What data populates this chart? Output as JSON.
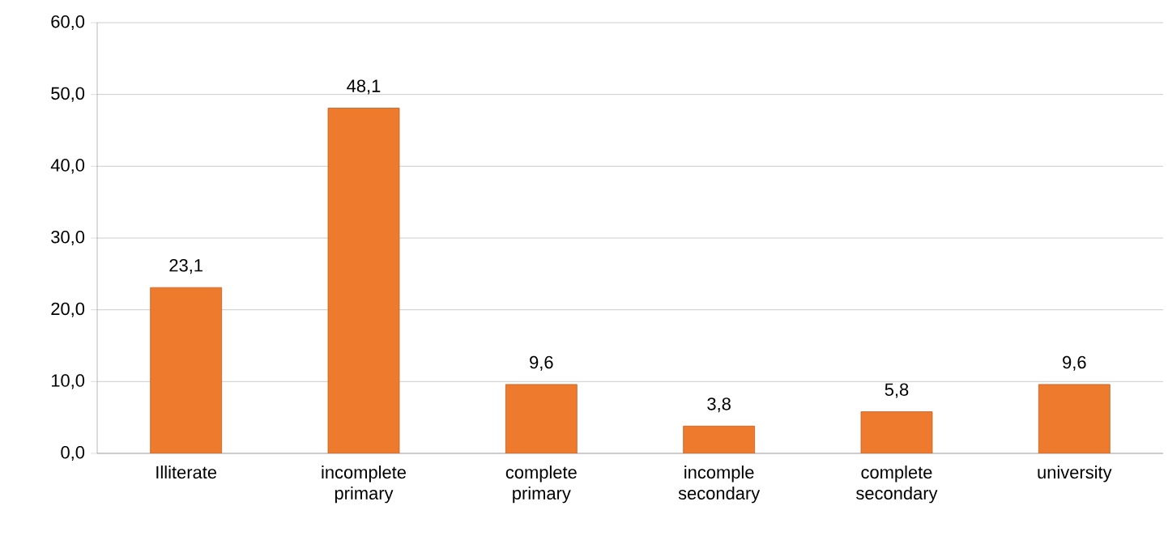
{
  "chart_data": {
    "type": "bar",
    "categories": [
      "Illiterate",
      "incomplete primary",
      "complete primary",
      "incomple secondary",
      "complete secondary",
      "university"
    ],
    "values": [
      23.1,
      48.1,
      9.6,
      3.8,
      5.8,
      9.6
    ],
    "value_labels": [
      "23,1",
      "48,1",
      "9,6",
      "3,8",
      "5,8",
      "9,6"
    ],
    "color": "#ee7a2e",
    "ylim": [
      0,
      60
    ],
    "yticks": [
      {
        "value": 0,
        "label": "0,0"
      },
      {
        "value": 10,
        "label": "10,0"
      },
      {
        "value": 20,
        "label": "20,0"
      },
      {
        "value": 30,
        "label": "30,0"
      },
      {
        "value": 40,
        "label": "40,0"
      },
      {
        "value": 50,
        "label": "50,0"
      },
      {
        "value": 60,
        "label": "60,0"
      }
    ],
    "grid": "y"
  }
}
